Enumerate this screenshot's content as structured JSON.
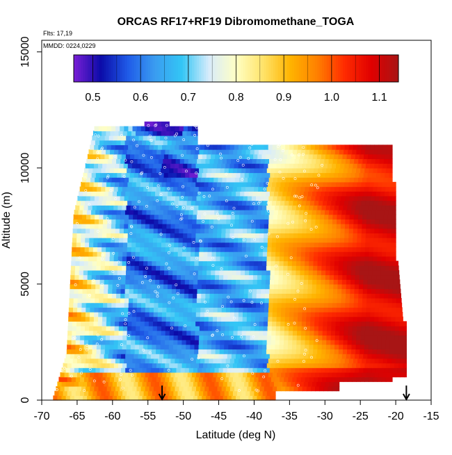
{
  "chart_data": {
    "type": "heatmap",
    "title": "ORCAS RF17+RF19 Dibromomethane_TOGA",
    "flights_label": "Flts: 17,19",
    "mmdd_label": "MMDD: 0224,0229",
    "xlabel": "Latitude (deg N)",
    "ylabel": "Altitude (m)",
    "xlim": [
      -70,
      -15
    ],
    "ylim": [
      0,
      15500
    ],
    "x_ticks": [
      -70,
      -65,
      -60,
      -55,
      -50,
      -45,
      -40,
      -35,
      -30,
      -25,
      -20,
      -15
    ],
    "x_tick_labels": [
      "-70",
      "-65",
      "-60",
      "-55",
      "-50",
      "-45",
      "-40",
      "-35",
      "-30",
      "-25",
      "-20",
      "-15"
    ],
    "y_ticks": [
      0,
      5000,
      10000,
      15000
    ],
    "y_tick_labels": [
      "0",
      "5000",
      "10000",
      "15000"
    ],
    "colorbar": {
      "range": [
        0.46,
        1.14
      ],
      "ticks": [
        0.5,
        0.6,
        0.7,
        0.8,
        0.9,
        1.0,
        1.1
      ],
      "tick_labels": [
        "0.5",
        "0.6",
        "0.7",
        "0.8",
        "0.9",
        "1.0",
        "1.1"
      ],
      "colors": [
        "#7a1fd6",
        "#0b0ba8",
        "#1f5be8",
        "#3a9cf0",
        "#33c6f5",
        "#d8ecfb",
        "#ffffc4",
        "#ffe36a",
        "#ffb400",
        "#ff8000",
        "#ff2b00",
        "#e00000",
        "#a81515"
      ]
    },
    "arrows": [
      {
        "latitude": -53.0,
        "altitude": 0
      },
      {
        "latitude": -18.5,
        "altitude": 0
      }
    ],
    "grid": false
  }
}
